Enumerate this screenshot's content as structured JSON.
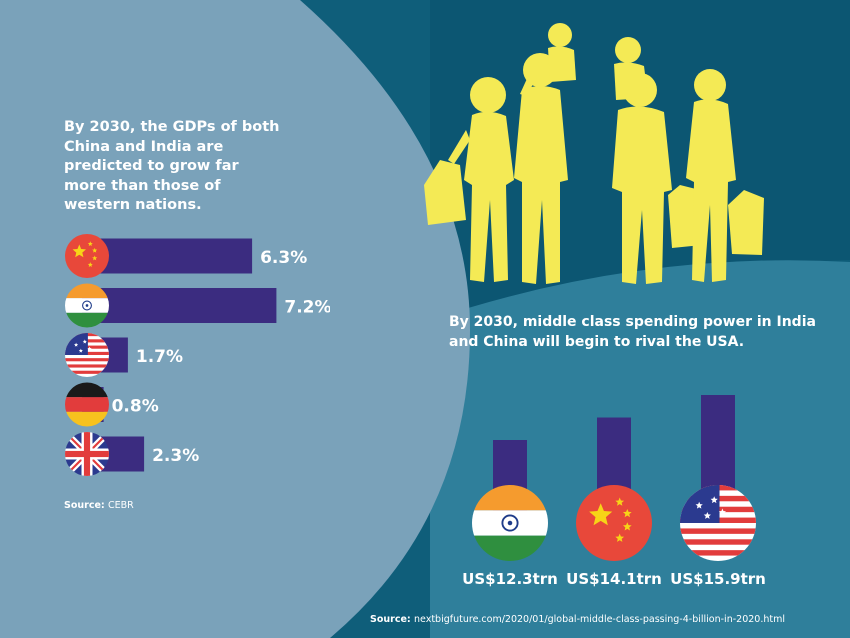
{
  "left_panel": {
    "title": "By 2030, the GDPs of both China and India are predicted to grow far more than those of western nations.",
    "source_label": "Source:",
    "source_value": "CEBR"
  },
  "right_panel": {
    "title": "By 2030, middle class spending power in India and China will begin to rival the USA.",
    "source_label": "Source:",
    "source_value": "nextbigfuture.com/2020/01/global-middle-class-passing-4-billion-in-2020.html"
  },
  "colors": {
    "background_dark": "#0f5e7a",
    "background_mid": "#2f7f9b",
    "background_light": "#7aa2ba",
    "bar": "#3b2c80",
    "silhouette": "#f4ea55",
    "text": "#ffffff"
  },
  "icons": {
    "silhouette": "shopping-family-silhouette",
    "flags": [
      "china-flag-icon",
      "india-flag-icon",
      "usa-flag-icon",
      "germany-flag-icon",
      "uk-flag-icon"
    ]
  },
  "chart_data": [
    {
      "type": "bar",
      "orientation": "horizontal",
      "categories": [
        "China",
        "India",
        "USA",
        "Germany",
        "UK"
      ],
      "values": [
        6.3,
        7.2,
        1.7,
        0.8,
        2.3
      ],
      "labels": [
        "6.3%",
        "7.2%",
        "1.7%",
        "0.8%",
        "2.3%"
      ],
      "category_icons": [
        "china-flag-icon",
        "india-flag-icon",
        "usa-flag-icon",
        "germany-flag-icon",
        "uk-flag-icon"
      ]
    },
    {
      "type": "bar",
      "orientation": "vertical",
      "categories": [
        "India",
        "China",
        "USA"
      ],
      "values": [
        12.3,
        14.1,
        15.9
      ],
      "labels": [
        "US$12.3trn",
        "US$14.1trn",
        "US$15.9trn"
      ],
      "category_icons": [
        "india-flag-icon",
        "china-flag-icon",
        "usa-flag-icon"
      ]
    }
  ]
}
